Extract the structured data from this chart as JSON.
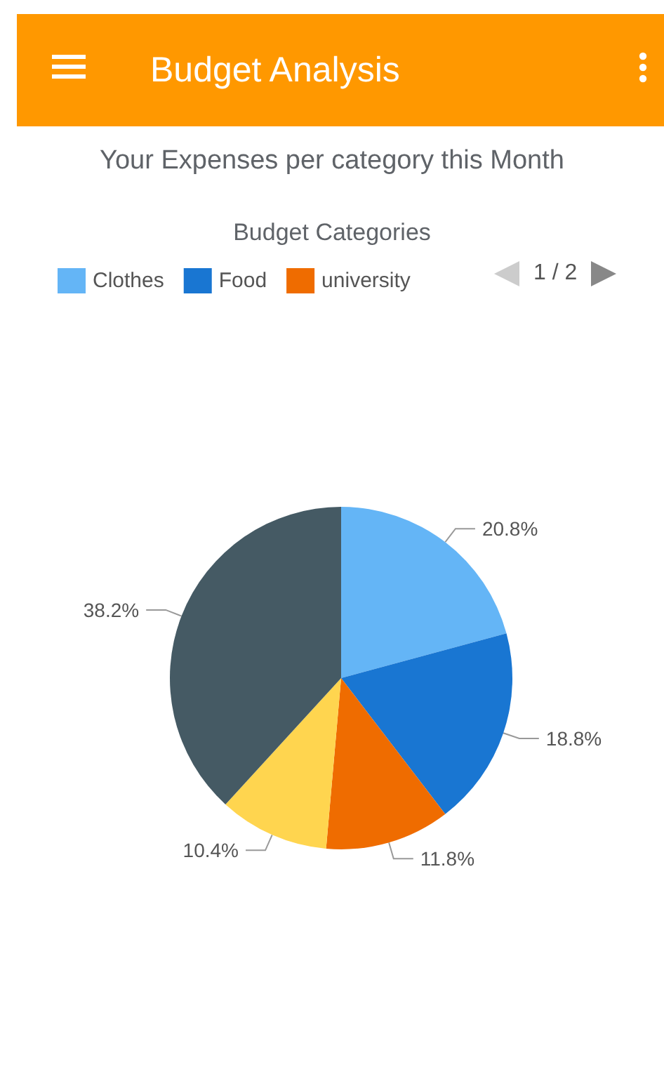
{
  "chart_data": {
    "type": "pie",
    "title": "Budget Analysis",
    "subtitle": "Your Expenses per category this Month",
    "legend_title": "Budget Categories",
    "categories": [
      "Clothes",
      "Food",
      "university",
      null,
      null
    ],
    "values": [
      20.8,
      18.8,
      11.8,
      10.4,
      38.2
    ],
    "colors": [
      "#64b5f6",
      "#1976d2",
      "#ef6c00",
      "#ffd54f",
      "#455a64"
    ],
    "value_labels": [
      "20.8%",
      "18.8%",
      "11.8%",
      "10.4%",
      "38.2%"
    ],
    "legend": "top",
    "annotations": [
      "1 / 2"
    ]
  }
}
